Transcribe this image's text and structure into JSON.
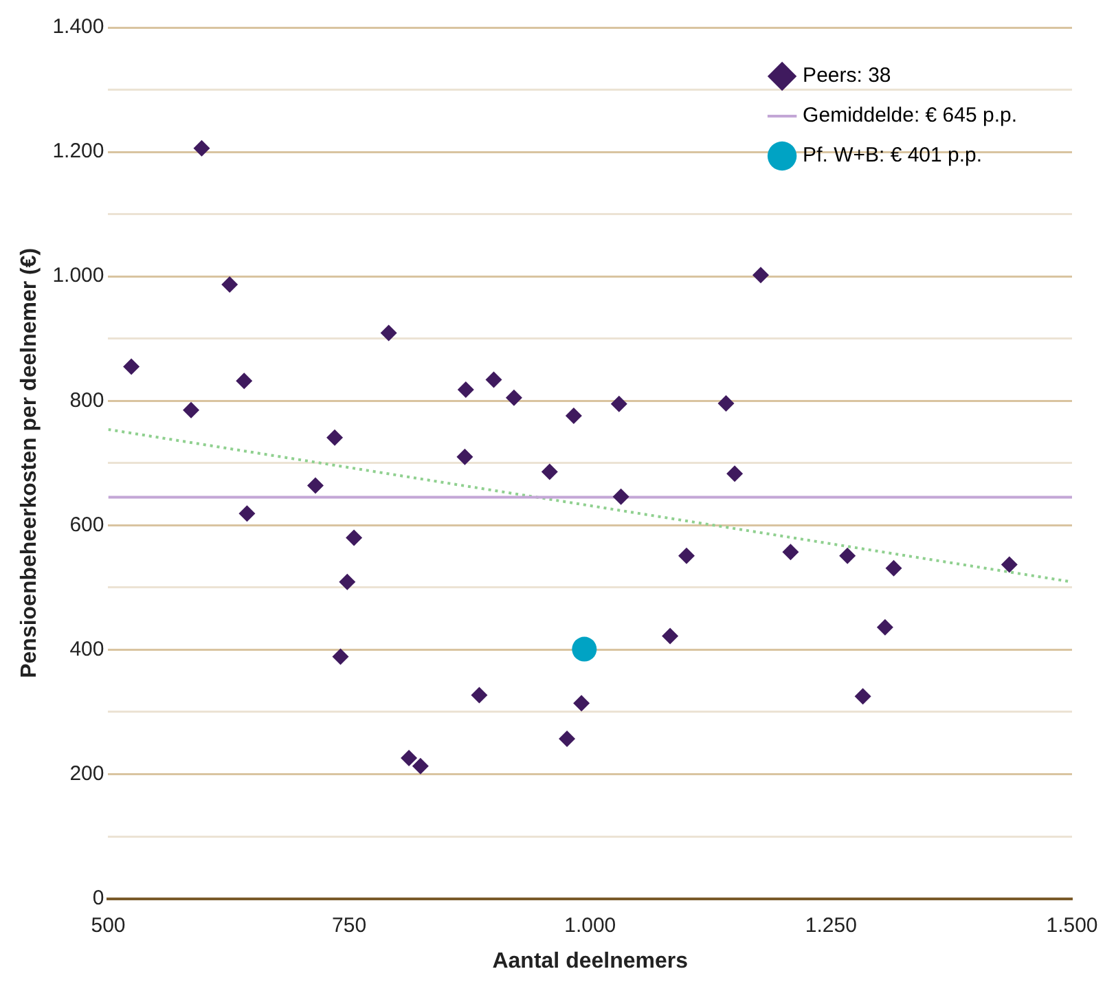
{
  "chart_data": {
    "type": "scatter",
    "xlabel": "Aantal deelnemers",
    "ylabel": "Pensioenbeheerkosten per deelnemer (€)",
    "xlim": [
      500,
      1500
    ],
    "xticks": [
      500,
      750,
      {
        "value": 1000,
        "label": "1.000"
      },
      {
        "value": 1250,
        "label": "1.250"
      },
      {
        "value": 1500,
        "label": "1.500"
      }
    ],
    "ylim": [
      0,
      1400
    ],
    "yticks": [
      0,
      {
        "value": 100,
        "label": null
      },
      200,
      {
        "value": 300,
        "label": null
      },
      400,
      {
        "value": 500,
        "label": null
      },
      600,
      {
        "value": 700,
        "label": null
      },
      800,
      {
        "value": 900,
        "label": null
      },
      {
        "value": 1000,
        "label": "1.000"
      },
      {
        "value": 1100,
        "label": null
      },
      {
        "value": 1200,
        "label": "1.200"
      },
      {
        "value": 1300,
        "label": null
      },
      {
        "value": 1400,
        "label": "1.400"
      }
    ],
    "grid": "y",
    "legend": "top right",
    "series": [
      {
        "name": "Peers: 38",
        "marker": "diamond",
        "color": "#3f1a5e",
        "x": [
          524,
          586,
          597,
          626,
          641,
          644,
          715,
          735,
          741,
          748,
          755,
          791,
          812,
          824,
          870,
          871,
          885,
          900,
          921,
          958,
          976,
          983,
          991,
          1030,
          1032,
          1083,
          1100,
          1141,
          1150,
          1177,
          1208,
          1267,
          1283,
          1306,
          1315,
          1435
        ],
        "values": [
          855,
          785,
          1206,
          987,
          832,
          619,
          664,
          741,
          389,
          509,
          580,
          909,
          226,
          213,
          710,
          818,
          327,
          834,
          805,
          686,
          257,
          776,
          314,
          795,
          646,
          422,
          551,
          796,
          683,
          1002,
          557,
          551,
          325,
          436,
          531,
          537
        ]
      },
      {
        "name": "Gemiddelde: € 645 p.p.",
        "type": "line",
        "marker": "none",
        "line_style": "solid",
        "color": "#c3a6d6",
        "x": [
          500,
          1500
        ],
        "values": [
          645,
          645
        ]
      },
      {
        "name": "Pf. W+B: € 401 p.p.",
        "marker": "circle",
        "color": "#00a3c4",
        "x": [
          994
        ],
        "values": [
          401
        ]
      },
      {
        "type": "line",
        "marker": "none",
        "line_style": "dotted",
        "color": "#8fd08f",
        "x": [
          500,
          1500
        ],
        "values": [
          754,
          509
        ]
      }
    ]
  }
}
